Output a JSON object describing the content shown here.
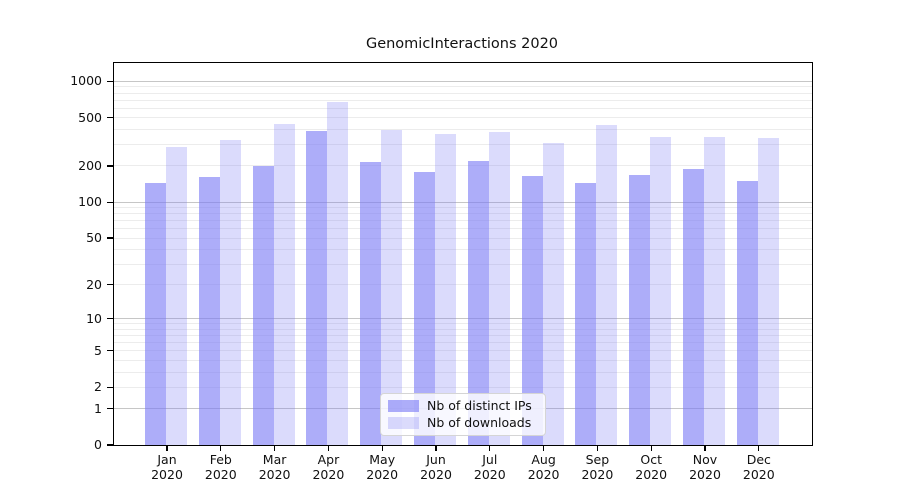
{
  "figure": {
    "title": "GenomicInteractions 2020"
  },
  "chart_data": {
    "type": "bar",
    "title": "GenomicInteractions 2020",
    "categories": [
      "Jan",
      "Feb",
      "Mar",
      "Apr",
      "May",
      "Jun",
      "Jul",
      "Aug",
      "Sep",
      "Oct",
      "Nov",
      "Dec"
    ],
    "x_year": "2020",
    "series": [
      {
        "name": "Nb of distinct IPs",
        "values": [
          143,
          163,
          201,
          390,
          217,
          179,
          221,
          166,
          144,
          168,
          188,
          150
        ],
        "color": "rgba(123,123,245,0.62)"
      },
      {
        "name": "Nb of downloads",
        "values": [
          288,
          330,
          443,
          680,
          395,
          368,
          381,
          311,
          440,
          350,
          347,
          341
        ],
        "color": "rgba(123,123,245,0.27)"
      }
    ],
    "xlabel": "",
    "ylabel": "",
    "yscale": "log1p",
    "ylim": [
      0,
      1420
    ],
    "yticks": [
      1000,
      500,
      200,
      100,
      50,
      20,
      10,
      5,
      2,
      1,
      0
    ],
    "grid": "horizontal, minor log subdivisions",
    "legend_position": "lower center"
  },
  "colors": {
    "background": "#ffffff",
    "bar_base": "#7b7bf5",
    "grid_major": "#c6c6c6",
    "grid_minor": "#ececec",
    "axis": "#000000",
    "text": "#111111",
    "legend_border": "#d5d5d5",
    "legend_background": "rgba(255,255,255,0.8)"
  }
}
